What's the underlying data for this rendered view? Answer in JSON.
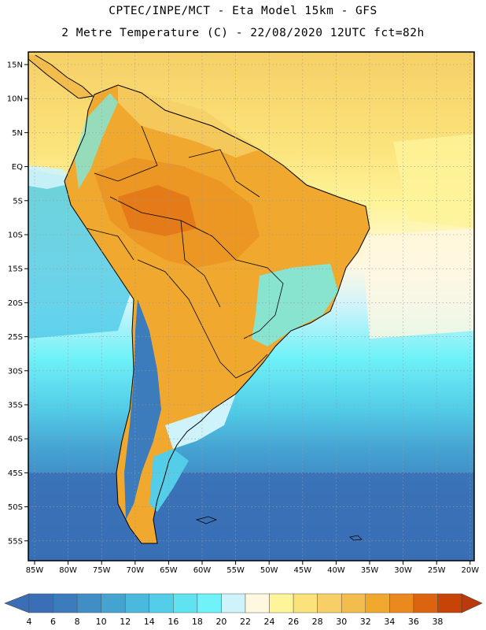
{
  "title_line1": "CPTEC/INPE/MCT -  Eta Model 15km - GFS",
  "title_line2": "2 Metre Temperature (C) - 22/08/2020 12UTC fct=82h",
  "lat_labels": [
    "15N",
    "10N",
    "5N",
    "EQ",
    "5S",
    "10S",
    "15S",
    "20S",
    "25S",
    "30S",
    "35S",
    "40S",
    "45S",
    "50S",
    "55S"
  ],
  "lon_labels": [
    "85W",
    "80W",
    "75W",
    "70W",
    "65W",
    "60W",
    "55W",
    "50W",
    "45W",
    "40W",
    "35W",
    "30W",
    "25W",
    "20W"
  ],
  "colorbar": {
    "labels": [
      "4",
      "6",
      "8",
      "10",
      "12",
      "14",
      "16",
      "18",
      "20",
      "22",
      "24",
      "26",
      "28",
      "30",
      "32",
      "34",
      "36",
      "38"
    ],
    "colors": [
      "#3a6fb5",
      "#3c7cbc",
      "#3f8ec6",
      "#45a3d2",
      "#4bb8de",
      "#53cde8",
      "#5fe3f0",
      "#6ff2f8",
      "#cff3fb",
      "#fff8e1",
      "#fef49a",
      "#fbe27a",
      "#f6d066",
      "#f2bd4c",
      "#f0a82e",
      "#ea8a1e",
      "#dc6410",
      "#c84306",
      "#b93a0a"
    ]
  }
}
